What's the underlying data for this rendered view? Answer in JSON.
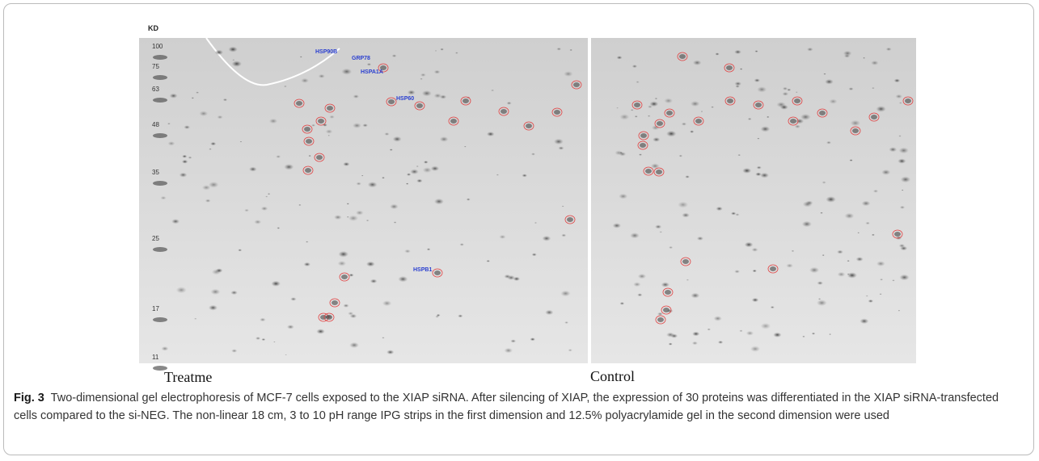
{
  "figure": {
    "kd_label": "KD",
    "markers": [
      "100",
      "75",
      "63",
      "48",
      "35",
      "25",
      "17",
      "11"
    ],
    "protein_labels": [
      "HSP90B",
      "GRP78",
      "HSPA1A",
      "HSP60",
      "HSPB1"
    ],
    "panels": [
      "Treatme",
      "Control"
    ],
    "caption": {
      "label": "Fig. 3",
      "text": "Two-dimensional gel electrophoresis of MCF-7 cells exposed to the XIAP siRNA. After silencing of XIAP, the expression of 30 proteins was differentiated in the XIAP siRNA-transfected cells compared to the si-NEG. The non-linear 18 cm, 3 to 10 pH range IPG strips in the first dimension and 12.5% polyacrylamide gel in the second dimension were used"
    }
  }
}
